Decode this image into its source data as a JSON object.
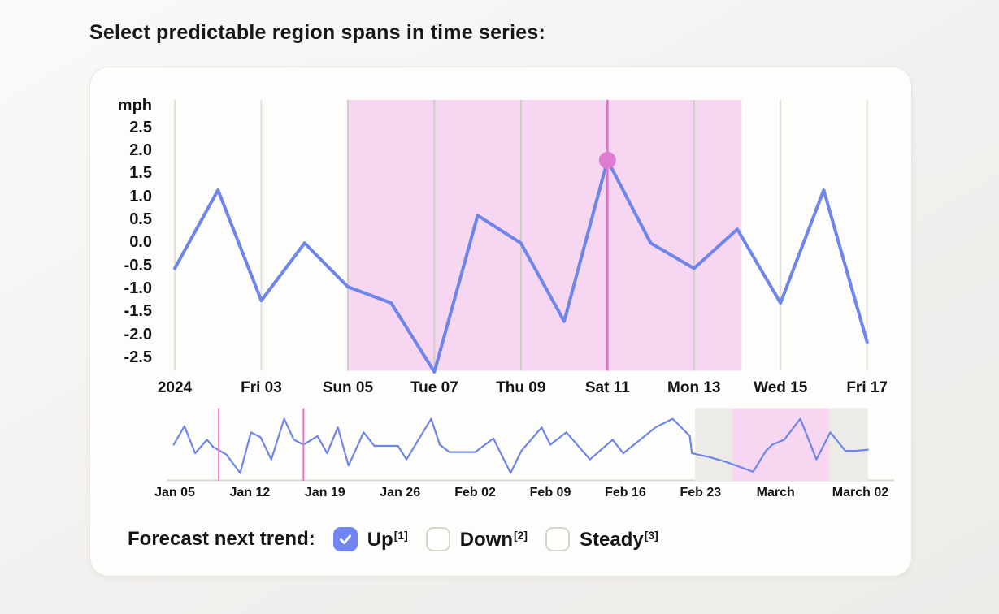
{
  "page": {
    "title": "Select predictable region spans in time series:"
  },
  "colors": {
    "accent_blue": "#6e85ea",
    "region_pink": "#f6d6f0",
    "selection_magenta": "#df6ec9",
    "dot_pink": "#df7bd0",
    "grid": "#e3e0da",
    "grid_in_region": "#cfccc4",
    "overview_gray": "#edebe7",
    "overview_marker": "#ed74c4",
    "axis_line": "#dcd9d3",
    "checkbox_blue": "#7185f0",
    "checkbox_border": "#d8d4c7"
  },
  "chart_data": [
    {
      "type": "line",
      "name": "main",
      "unit_label": "mph",
      "y_tick_labels": [
        "2.5",
        "2.0",
        "1.5",
        "1.0",
        "0.5",
        "0.0",
        "-0.5",
        "-1.0",
        "-1.5",
        "-2.0",
        "-2.5"
      ],
      "ylim": [
        -2.8,
        3.1
      ],
      "grid": "vertical-only",
      "x_tick_labels": [
        "2024",
        "Fri 03",
        "Sun 05",
        "Tue 07",
        "Thu 09",
        "Sat 11",
        "Mon 13",
        "Wed 15",
        "Fri 17"
      ],
      "x_tick_days": [
        1,
        3,
        5,
        7,
        9,
        11,
        13,
        15,
        17
      ],
      "days": [
        1,
        2,
        3,
        4,
        5,
        6,
        7,
        8,
        9,
        10,
        11,
        12,
        13,
        14,
        15,
        16,
        17
      ],
      "values": [
        -0.55,
        1.15,
        -1.25,
        0.0,
        -0.95,
        -1.3,
        -2.8,
        0.6,
        0.0,
        -1.7,
        1.8,
        0.0,
        -0.55,
        0.3,
        -1.3,
        1.15,
        -2.15
      ],
      "highlight_region": {
        "from_day": 5,
        "to_day": 14.1
      },
      "selected_point": {
        "day": 11,
        "label": "Sat 11",
        "value": 1.8
      }
    },
    {
      "type": "line",
      "name": "overview",
      "x_tick_labels": [
        "Jan 05",
        "Jan 12",
        "Jan 19",
        "Jan 26",
        "Feb 02",
        "Feb 09",
        "Feb 16",
        "Feb 23",
        "March",
        "March 02"
      ],
      "x_tick_days": [
        0,
        7,
        14,
        21,
        28,
        35,
        42,
        49,
        56,
        63.9
      ],
      "ylim": [
        -2.9,
        3.0
      ],
      "days": [
        -0.1,
        0.9,
        1.9,
        3.0,
        3.6,
        4.8,
        6.1,
        7.1,
        8.0,
        9.0,
        10.2,
        11.1,
        12.0,
        13.3,
        14.2,
        15.2,
        16.2,
        17.6,
        18.6,
        20.8,
        21.6,
        23.9,
        24.7,
        25.6,
        28.0,
        29.7,
        31.3,
        32.3,
        34.2,
        35.0,
        36.5,
        38.7,
        40.8,
        41.8,
        44.8,
        46.4,
        48.0,
        48.2,
        49.8,
        51.4,
        53.9,
        55.1,
        55.7,
        56.8,
        58.3,
        59.8,
        61.1,
        62.5,
        63.5,
        64.6
      ],
      "values": [
        0.0,
        1.5,
        -0.7,
        0.4,
        -0.2,
        -0.8,
        -2.3,
        1.0,
        0.6,
        -1.2,
        2.1,
        0.4,
        0.0,
        0.7,
        -0.7,
        1.4,
        -1.7,
        1.0,
        -0.1,
        -0.1,
        -1.2,
        2.1,
        0.0,
        -0.6,
        -0.6,
        0.5,
        -2.3,
        -0.5,
        1.4,
        0.0,
        1.0,
        -1.2,
        0.4,
        -0.7,
        1.4,
        2.1,
        0.7,
        -0.7,
        -1.0,
        -1.4,
        -2.2,
        -0.5,
        0.0,
        0.4,
        2.1,
        -1.2,
        1.0,
        -0.5,
        -0.5,
        -0.4
      ],
      "marker_line_days": [
        4.1,
        12.0
      ],
      "gray_region": {
        "from_day": 48.5,
        "to_day": 64.6
      },
      "pink_region": {
        "from_day": 52.0,
        "to_day": 61.0
      }
    }
  ],
  "forecast": {
    "label": "Forecast next trend:",
    "options": [
      {
        "label": "Up",
        "sup": "[1]",
        "checked": true
      },
      {
        "label": "Down",
        "sup": "[2]",
        "checked": false
      },
      {
        "label": "Steady",
        "sup": "[3]",
        "checked": false
      }
    ]
  }
}
